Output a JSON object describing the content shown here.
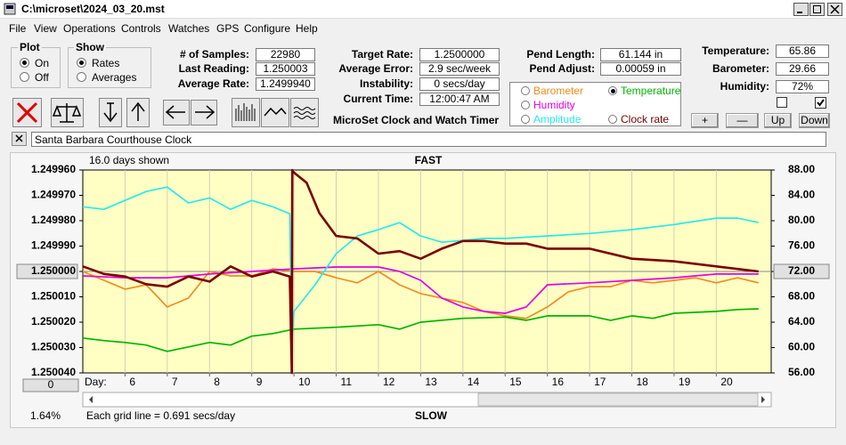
{
  "window": {
    "title": "C:\\microset\\2024_03_20.mst"
  },
  "menu": [
    "File",
    "View",
    "Operations",
    "Controls",
    "Watches",
    "GPS",
    "Configure",
    "Help"
  ],
  "plot_group": {
    "title": "Plot",
    "options": [
      "On",
      "Off"
    ]
  },
  "show_group": {
    "title": "Show",
    "options": [
      "Rates",
      "Averages"
    ]
  },
  "fields": [
    {
      "label": "# of Samples:",
      "value": "22980"
    },
    {
      "label": "Last Reading:",
      "value": "1.250003"
    },
    {
      "label": "Average Rate:",
      "value": "1.2499940"
    },
    {
      "label": "Target Rate:",
      "value": "1.2500000"
    },
    {
      "label": "Average Error:",
      "value": "2.9 sec/week"
    },
    {
      "label": "Instability:",
      "value": "0 secs/day"
    },
    {
      "label": "Current Time:",
      "value": "12:00:47 AM"
    },
    {
      "label": "Pend Length:",
      "value": "61.144 in"
    },
    {
      "label": "Pend Adjust:",
      "value": "0.00059 in"
    },
    {
      "label": "Temperature:",
      "value": "65.86"
    },
    {
      "label": "Barometer:",
      "value": "29.66"
    },
    {
      "label": "Humidity:",
      "value": "72%"
    }
  ],
  "app_title": "MicroSet Clock and Watch Timer",
  "buttons": [
    "+",
    "—",
    "Up",
    "Down"
  ],
  "clock_name": "Santa Barbara Courthouse Clock",
  "chart_data": {
    "type": "line",
    "title": "FAST",
    "footer": "SLOW",
    "header_left": "16.0 days shown",
    "x_label": "Day:",
    "offset_button": "0",
    "scale_readout": "1.64%",
    "note": "Each grid line = 0.691 secs/day",
    "xlim": [
      5.0,
      21.3
    ],
    "xticks": [
      6,
      7,
      8,
      9,
      10,
      11,
      12,
      13,
      14,
      15,
      16,
      17,
      18,
      19,
      20
    ],
    "ylim": [
      1.25004,
      1.24996
    ],
    "yticks": [
      {
        "value": 1.24996,
        "label": "1.249960"
      },
      {
        "value": 1.24997,
        "label": "1.249970"
      },
      {
        "value": 1.24998,
        "label": "1.249980"
      },
      {
        "value": 1.24999,
        "label": "1.249990"
      },
      {
        "value": 1.25,
        "label": "1.250000"
      },
      {
        "value": 1.25001,
        "label": "1.250010"
      },
      {
        "value": 1.25002,
        "label": "1.250020"
      },
      {
        "value": 1.25003,
        "label": "1.250030"
      },
      {
        "value": 1.25004,
        "label": "1.250040"
      }
    ],
    "y2lim": [
      56,
      88
    ],
    "y2ticks": [
      {
        "value": 88,
        "label": "88.00"
      },
      {
        "value": 84,
        "label": "84.00"
      },
      {
        "value": 80,
        "label": "80.00"
      },
      {
        "value": 76,
        "label": "76.00"
      },
      {
        "value": 72,
        "label": "72.00"
      },
      {
        "value": 68,
        "label": "68.00"
      },
      {
        "value": 64,
        "label": "64.00"
      },
      {
        "value": 60,
        "label": "60.00"
      },
      {
        "value": 56,
        "label": "56.00"
      }
    ],
    "grid": true,
    "legend_selected": 1,
    "series": [
      {
        "name": "Barometer",
        "color": "#f08c20",
        "axis": "y2",
        "x": [
          5,
          5.5,
          6,
          6.5,
          7,
          7.5,
          8,
          8.5,
          9,
          9.5,
          10,
          10.5,
          11,
          11.5,
          12,
          12.5,
          13,
          13.5,
          14,
          14.5,
          15,
          15.5,
          16,
          16.5,
          17,
          17.5,
          18,
          18.5,
          19,
          19.5,
          20,
          20.5,
          21
        ],
        "values": [
          72.0,
          70.6,
          69.2,
          69.9,
          66.4,
          67.8,
          72.0,
          71.3,
          71.3,
          72.4,
          72.0,
          72.0,
          71.0,
          70.2,
          72.0,
          69.9,
          68.5,
          67.8,
          67.1,
          65.7,
          65.0,
          64.6,
          66.4,
          68.8,
          69.6,
          69.6,
          70.6,
          70.2,
          70.6,
          71.0,
          70.2,
          71.0,
          70.2
        ]
      },
      {
        "name": "Temperature",
        "color": "#00b400",
        "axis": "y2",
        "x": [
          5,
          5.5,
          6,
          6.5,
          7,
          7.5,
          8,
          8.5,
          9,
          9.5,
          10,
          11,
          12,
          12.5,
          13,
          14,
          15,
          15.5,
          16,
          17,
          17.5,
          18,
          18.5,
          19,
          20,
          20.5,
          21
        ],
        "values": [
          61.5,
          61.1,
          60.8,
          60.4,
          59.4,
          60.1,
          60.8,
          60.4,
          61.8,
          62.2,
          62.9,
          63.2,
          63.6,
          62.9,
          64.0,
          64.6,
          64.8,
          64.3,
          65.0,
          65.0,
          64.3,
          65.0,
          64.6,
          65.4,
          65.7,
          66.0,
          66.1
        ]
      },
      {
        "name": "Humidity",
        "color": "#e400e4",
        "axis": "y2",
        "x": [
          5,
          6,
          7,
          8,
          9,
          10,
          11,
          12,
          12.5,
          13,
          13.5,
          14,
          14.5,
          15,
          15.5,
          16,
          17,
          18,
          19,
          20,
          21
        ],
        "values": [
          71.3,
          71.0,
          71.0,
          71.6,
          72.0,
          72.4,
          72.7,
          72.7,
          72.0,
          70.6,
          67.8,
          66.4,
          65.7,
          65.4,
          66.4,
          69.9,
          70.2,
          70.6,
          71.0,
          71.6,
          71.6
        ]
      },
      {
        "name": "Amplitude",
        "color": "#28e8f0",
        "axis": "y2",
        "x": [
          5,
          5.5,
          6,
          6.5,
          7,
          7.5,
          8,
          8.5,
          9,
          9.5,
          9.9,
          9.95,
          10,
          10.5,
          11,
          11.5,
          12,
          12.5,
          13,
          13.5,
          14,
          14.5,
          15,
          16,
          17,
          18,
          19,
          20,
          20.5,
          21
        ],
        "values": [
          82.2,
          81.8,
          83.2,
          84.6,
          85.3,
          82.8,
          83.6,
          81.8,
          83.2,
          82.2,
          81.1,
          60.8,
          65.7,
          69.9,
          74.8,
          77.6,
          78.6,
          79.7,
          77.6,
          76.6,
          76.9,
          77.2,
          77.2,
          77.6,
          78.0,
          78.6,
          79.4,
          80.4,
          80.4,
          79.7
        ]
      },
      {
        "name": "Clock rate",
        "color": "#7a0000",
        "axis": "y",
        "x": [
          5,
          5.5,
          6,
          6.5,
          7,
          7.5,
          8,
          8.5,
          9,
          9.5,
          9.9,
          9.95,
          9.96,
          10,
          10.3,
          10.6,
          11,
          11.5,
          12,
          12.5,
          13,
          13.5,
          14,
          14.5,
          15,
          15.5,
          16,
          17,
          18,
          19,
          20,
          20.5,
          21
        ],
        "values": [
          1.249998,
          1.250001,
          1.250002,
          1.250005,
          1.250006,
          1.250002,
          1.250004,
          1.249998,
          1.250002,
          1.25,
          1.250002,
          1.25004,
          1.24996,
          1.249961,
          1.249965,
          1.249977,
          1.249986,
          1.249987,
          1.249993,
          1.249992,
          1.249995,
          1.249991,
          1.249988,
          1.249988,
          1.249989,
          1.249989,
          1.249991,
          1.249991,
          1.249995,
          1.249996,
          1.249998,
          1.249999,
          1.25
        ]
      }
    ]
  }
}
